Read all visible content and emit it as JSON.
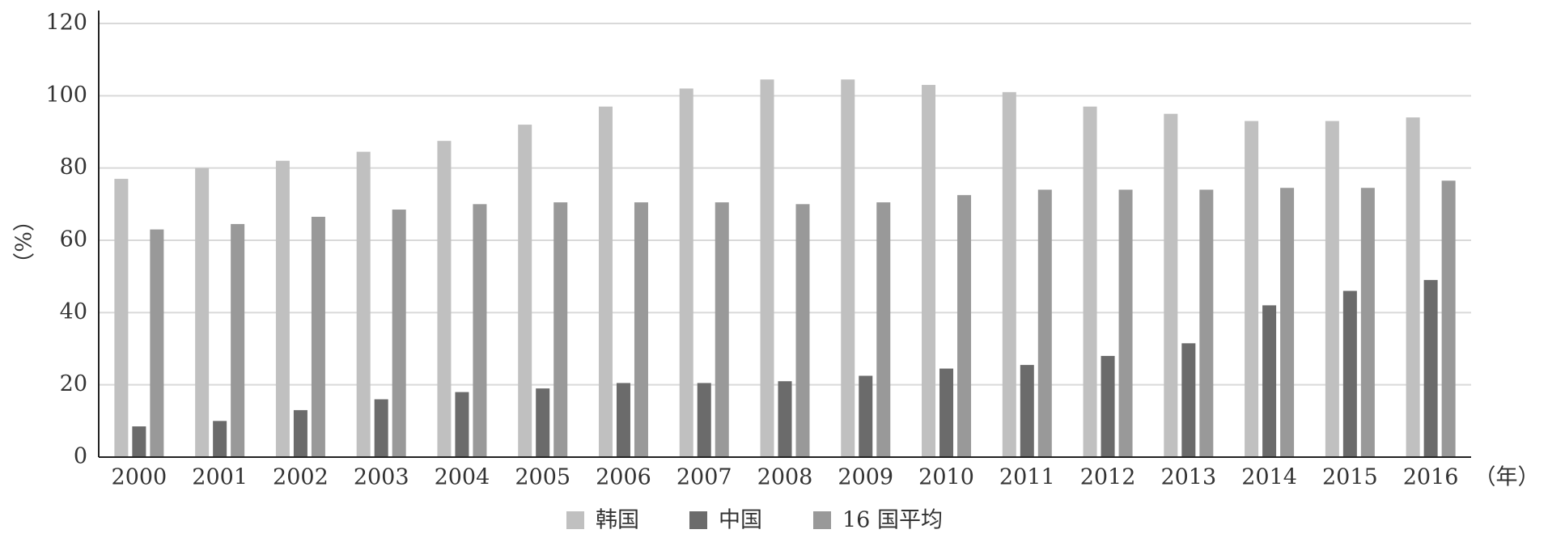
{
  "chart_data": {
    "type": "bar",
    "x_label": "（年）",
    "y_label": "（%）",
    "categories": [
      "2000",
      "2001",
      "2002",
      "2003",
      "2004",
      "2005",
      "2006",
      "2007",
      "2008",
      "2009",
      "2010",
      "2011",
      "2012",
      "2013",
      "2014",
      "2015",
      "2016"
    ],
    "series": [
      {
        "name": "韩国",
        "color": "#c0c0c0",
        "values": [
          77,
          80,
          82,
          84.5,
          87.5,
          92,
          97,
          102,
          104.5,
          104.5,
          103,
          101,
          97,
          95,
          93,
          93,
          94
        ]
      },
      {
        "name": "中国",
        "color": "#6b6b6b",
        "values": [
          8.5,
          10,
          13,
          16,
          18,
          19,
          20.5,
          20.5,
          21,
          22.5,
          24.5,
          25.5,
          28,
          31.5,
          42,
          46,
          49
        ]
      },
      {
        "name": "16 国平均",
        "color": "#999999",
        "values": [
          63,
          64.5,
          66.5,
          68.5,
          70,
          70.5,
          70.5,
          70.5,
          70,
          70.5,
          72.5,
          74,
          74,
          74,
          74.5,
          74.5,
          76.5
        ]
      }
    ],
    "ylim": [
      0,
      120
    ],
    "yticks": [
      0,
      20,
      40,
      60,
      80,
      100,
      120
    ],
    "grid": true,
    "legend": "bottom"
  }
}
